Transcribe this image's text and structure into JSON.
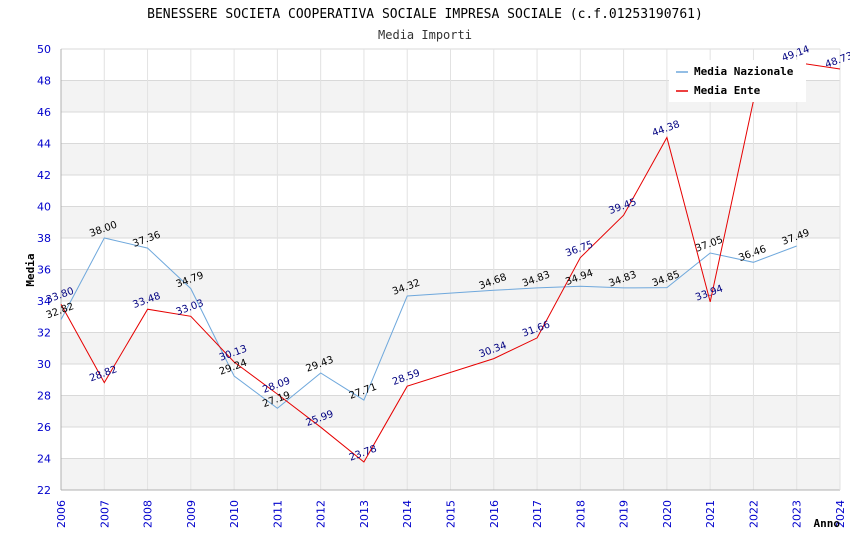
{
  "chart_data": {
    "type": "line",
    "title": "BENESSERE SOCIETA COOPERATIVA SOCIALE IMPRESA SOCIALE (c.f.01253190761)",
    "subtitle": "Media Importi",
    "xlabel": "Anno",
    "ylabel": "Media",
    "ylim": [
      22,
      50
    ],
    "yticks": [
      "22",
      "24",
      "26",
      "28",
      "30",
      "32",
      "34",
      "36",
      "38",
      "40",
      "42",
      "44",
      "46",
      "48",
      "50"
    ],
    "categories": [
      "2006",
      "2007",
      "2008",
      "2009",
      "2010",
      "2011",
      "2012",
      "2013",
      "2014",
      "2015",
      "2016",
      "2017",
      "2018",
      "2019",
      "2020",
      "2021",
      "2022",
      "2023",
      "2024"
    ],
    "series": [
      {
        "name": "Media Nazionale",
        "color": "#6fa8dc",
        "x": [
          "2006",
          "2007",
          "2008",
          "2009",
          "2010",
          "2011",
          "2012",
          "2013",
          "2014",
          "2016",
          "2017",
          "2018",
          "2019",
          "2020",
          "2021",
          "2022",
          "2023"
        ],
        "values": [
          32.82,
          38.0,
          37.36,
          34.79,
          29.24,
          27.19,
          29.43,
          27.71,
          34.32,
          34.68,
          34.83,
          34.94,
          34.83,
          34.85,
          37.05,
          36.46,
          37.49
        ],
        "labels": [
          "32.82",
          "38.00",
          "37.36",
          "34.79",
          "29.24",
          "27.19",
          "29.43",
          "27.71",
          "34.32",
          "34.68",
          "34.83",
          "34.94",
          "34.83",
          "34.85",
          "37.05",
          "36.46",
          "37.49"
        ]
      },
      {
        "name": "Media Ente",
        "color": "#e60000",
        "x": [
          "2006",
          "2007",
          "2008",
          "2009",
          "2010",
          "2011",
          "2012",
          "2013",
          "2014",
          "2016",
          "2017",
          "2018",
          "2019",
          "2020",
          "2021",
          "2022",
          "2023",
          "2024"
        ],
        "values": [
          33.8,
          28.82,
          33.48,
          33.03,
          30.13,
          28.09,
          25.99,
          23.78,
          28.59,
          30.34,
          31.66,
          36.75,
          39.45,
          44.38,
          33.94,
          46.7,
          49.14,
          48.73
        ],
        "labels": [
          "33.80",
          "28.82",
          "33.48",
          "33.03",
          "30.13",
          "28.09",
          "25.99",
          "23.78",
          "28.59",
          "30.34",
          "31.66",
          "36.75",
          "39.45",
          "44.38",
          "33.94",
          "",
          "49.14",
          "48.73"
        ]
      }
    ],
    "legend": [
      "Media Nazionale",
      "Media Ente"
    ],
    "legend_position": "top-right",
    "grid": true
  }
}
